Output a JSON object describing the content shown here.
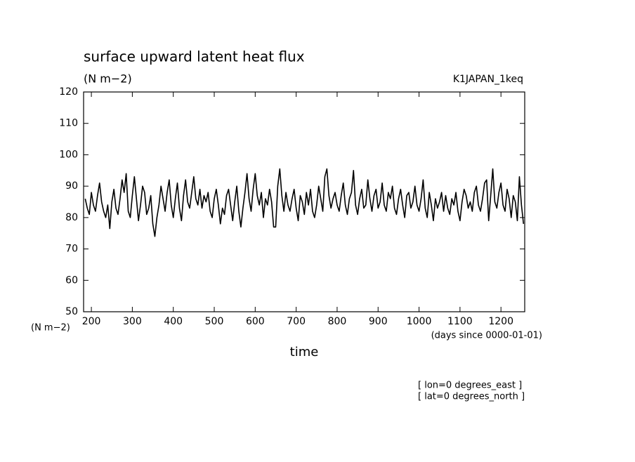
{
  "chart_data": {
    "type": "line",
    "title": "surface upward latent heat flux",
    "subtitle": "(N m−2)",
    "dataset_label": "K1JAPAN_1keq",
    "y_unit_label": "(N m−2)",
    "x_unit_label": "(days since 0000-01-01)",
    "x_label": "time",
    "footnotes": [
      "[ lon=0 degrees_east ]",
      "[ lat=0 degrees_north ]"
    ],
    "color": "#000000",
    "xlim": [
      181,
      1258
    ],
    "ylim": [
      50,
      120
    ],
    "xticks": [
      200,
      300,
      400,
      500,
      600,
      700,
      800,
      900,
      1000,
      1100,
      1200
    ],
    "yticks": [
      50,
      60,
      70,
      80,
      90,
      100,
      110,
      120
    ],
    "x": [
      185,
      190,
      195,
      200,
      205,
      210,
      215,
      220,
      225,
      230,
      235,
      240,
      245,
      250,
      255,
      260,
      265,
      270,
      275,
      280,
      285,
      290,
      295,
      300,
      305,
      310,
      315,
      320,
      325,
      330,
      335,
      340,
      345,
      350,
      355,
      360,
      365,
      370,
      375,
      380,
      385,
      390,
      395,
      400,
      405,
      410,
      415,
      420,
      425,
      430,
      435,
      440,
      445,
      450,
      455,
      460,
      465,
      470,
      475,
      480,
      485,
      490,
      495,
      500,
      505,
      510,
      515,
      520,
      525,
      530,
      535,
      540,
      545,
      550,
      555,
      560,
      565,
      570,
      575,
      580,
      585,
      590,
      595,
      600,
      605,
      610,
      615,
      620,
      625,
      630,
      635,
      640,
      645,
      650,
      655,
      660,
      665,
      670,
      675,
      680,
      685,
      690,
      695,
      700,
      705,
      710,
      715,
      720,
      725,
      730,
      735,
      740,
      745,
      750,
      755,
      760,
      765,
      770,
      775,
      780,
      785,
      790,
      795,
      800,
      805,
      810,
      815,
      820,
      825,
      830,
      835,
      840,
      845,
      850,
      855,
      860,
      865,
      870,
      875,
      880,
      885,
      890,
      895,
      900,
      905,
      910,
      915,
      920,
      925,
      930,
      935,
      940,
      945,
      950,
      955,
      960,
      965,
      970,
      975,
      980,
      985,
      990,
      995,
      1000,
      1005,
      1010,
      1015,
      1020,
      1025,
      1030,
      1035,
      1040,
      1045,
      1050,
      1055,
      1060,
      1065,
      1070,
      1075,
      1080,
      1085,
      1090,
      1095,
      1100,
      1105,
      1110,
      1115,
      1120,
      1125,
      1130,
      1135,
      1140,
      1145,
      1150,
      1155,
      1160,
      1165,
      1170,
      1175,
      1180,
      1185,
      1190,
      1195,
      1200,
      1205,
      1210,
      1215,
      1220,
      1225,
      1230,
      1235,
      1240,
      1245,
      1250,
      1255
    ],
    "values": [
      86,
      83,
      81,
      88,
      84,
      82,
      87,
      91,
      85,
      82,
      80,
      84,
      76.5,
      85,
      89,
      83,
      81,
      86,
      92,
      88,
      94,
      82,
      80,
      87,
      93,
      86,
      79,
      84,
      90,
      88,
      81,
      83,
      87,
      78,
      74,
      80,
      84,
      90,
      86,
      82,
      88,
      92,
      84,
      80,
      86,
      91,
      83,
      79,
      87,
      92,
      85,
      83,
      88,
      93,
      86,
      84,
      89,
      83,
      87,
      85,
      88,
      82,
      80,
      86,
      89,
      84,
      78,
      83,
      81,
      87,
      89,
      84,
      79,
      85,
      90,
      82,
      77,
      83,
      88,
      94,
      86,
      82,
      89,
      94,
      87,
      84,
      88,
      80,
      86,
      84,
      89,
      85,
      77,
      77,
      90,
      95.5,
      87,
      82,
      88,
      84,
      82,
      86,
      89,
      83,
      79,
      87,
      85,
      81,
      88,
      84,
      89,
      82,
      80,
      84,
      90,
      86,
      82,
      93,
      95.5,
      87,
      83,
      86,
      88,
      84,
      82,
      87,
      91,
      84,
      81,
      86,
      88,
      95,
      84,
      81,
      86,
      89,
      83,
      84,
      92,
      86,
      82,
      87,
      89,
      83,
      85,
      91,
      84,
      82,
      88,
      86,
      90,
      83,
      81,
      86,
      89,
      84,
      80,
      87,
      88,
      83,
      85,
      90,
      84,
      82,
      86,
      92,
      83,
      80,
      88,
      84,
      79,
      86,
      83,
      85,
      88,
      82,
      87,
      83,
      81,
      86,
      84,
      88,
      82,
      79,
      85,
      89,
      87,
      83,
      85,
      82,
      88,
      90,
      84,
      82,
      86,
      91,
      92,
      79,
      87,
      95.5,
      85,
      83,
      88,
      91,
      84,
      82,
      89,
      86,
      80,
      87,
      85,
      79,
      93,
      84,
      78
    ]
  }
}
